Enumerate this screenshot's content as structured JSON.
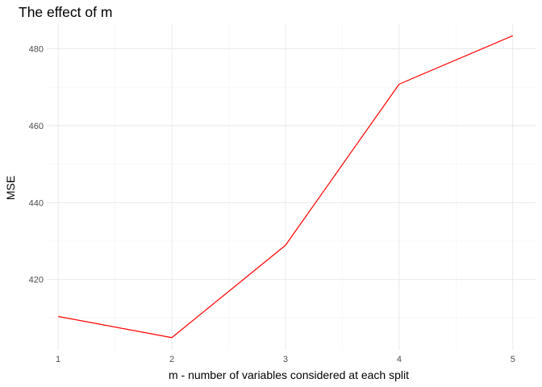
{
  "chart_data": {
    "type": "line",
    "title": "The effect of m",
    "xlabel": "m - number of variables considered at each split",
    "ylabel": "MSE",
    "x": [
      1,
      2,
      3,
      4,
      5
    ],
    "series": [
      {
        "values": [
          410.4,
          404.9,
          428.9,
          470.8,
          483.4
        ],
        "color": "#ff0000"
      }
    ],
    "xlim": [
      0.9,
      5.2
    ],
    "ylim": [
      401.7,
      486.6
    ],
    "x_ticks": [
      1,
      2,
      3,
      4,
      5
    ],
    "x_tick_labels": [
      "1",
      "2",
      "3",
      "4",
      "5"
    ],
    "y_ticks": [
      420,
      440,
      460,
      480
    ],
    "y_tick_labels": [
      "420",
      "440",
      "460",
      "480"
    ],
    "y_minor_ticks": [
      410,
      430,
      450,
      470
    ],
    "x_minor_ticks": [
      1.5,
      2.5,
      3.5,
      4.5
    ],
    "grid": true,
    "legend": "none",
    "colors": {
      "background": "#ffffff",
      "grid_major": "#ebebeb",
      "grid_minor": "#f4f4f4",
      "tick_text": "#4d4d4d",
      "text": "#000000"
    }
  }
}
